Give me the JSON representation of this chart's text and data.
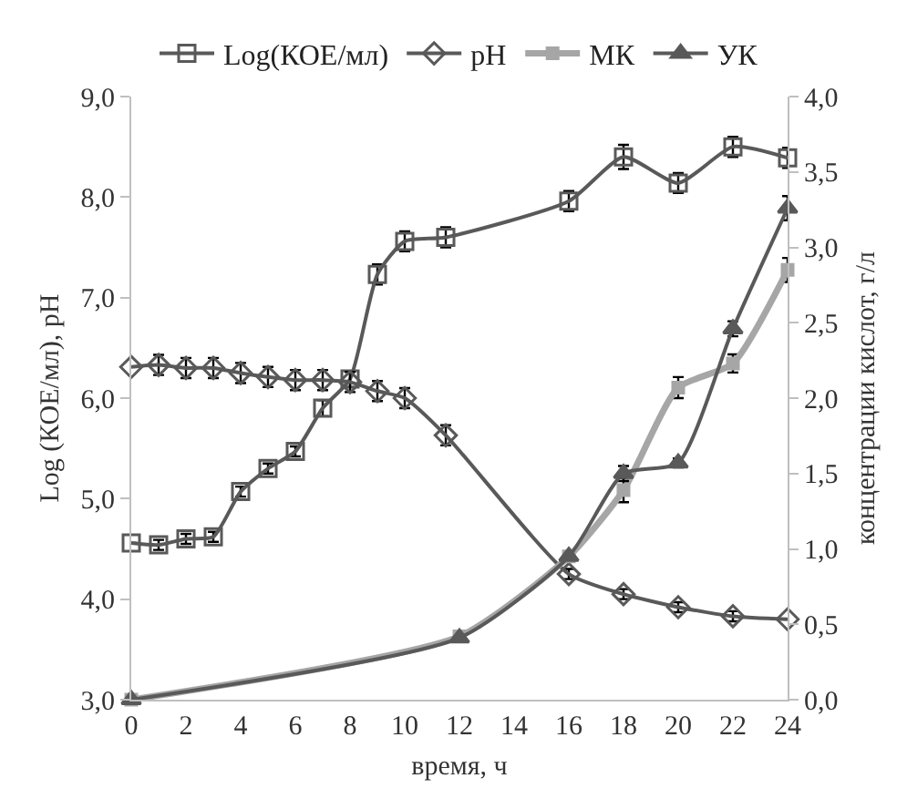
{
  "chart_data": {
    "type": "line",
    "xlabel": "время, ч",
    "ylabel": "Log (КОЕ/мл), pH",
    "y2label": "концентрации кислот, г/л",
    "xlim": [
      0,
      24
    ],
    "xticks": [
      0,
      2,
      4,
      6,
      8,
      10,
      12,
      14,
      16,
      18,
      20,
      22,
      24
    ],
    "ylim": [
      3,
      9
    ],
    "yticks": [
      {
        "value": 3,
        "label": "3,0"
      },
      {
        "value": 4,
        "label": "4,0"
      },
      {
        "value": 5,
        "label": "5,0"
      },
      {
        "value": 6,
        "label": "6,0"
      },
      {
        "value": 7,
        "label": "7,0"
      },
      {
        "value": 8,
        "label": "8,0"
      },
      {
        "value": 9,
        "label": "9,0"
      }
    ],
    "y2lim": [
      0,
      4
    ],
    "y2ticks": [
      {
        "value": 0,
        "label": "0,0"
      },
      {
        "value": 0.5,
        "label": "0,5"
      },
      {
        "value": 1,
        "label": "1,0"
      },
      {
        "value": 1.5,
        "label": "1,5"
      },
      {
        "value": 2,
        "label": "2,0"
      },
      {
        "value": 2.5,
        "label": "2,5"
      },
      {
        "value": 3,
        "label": "3,0"
      },
      {
        "value": 3.5,
        "label": "3,5"
      },
      {
        "value": 4,
        "label": "4,0"
      }
    ],
    "grid": false,
    "legend": "top",
    "line_style": "solid",
    "series": [
      {
        "name": "Log(КОЕ/мл)",
        "color": "#595959",
        "marker": "square",
        "x": [
          0,
          1,
          2,
          3,
          4,
          5,
          6,
          7,
          8,
          9,
          10,
          11.5,
          16,
          18,
          20,
          22,
          24
        ],
        "values": [
          4.56,
          4.54,
          4.6,
          4.62,
          5.07,
          5.3,
          5.47,
          5.9,
          6.19,
          7.23,
          7.56,
          7.6,
          7.96,
          8.4,
          8.14,
          8.5,
          8.39
        ],
        "errors": [
          null,
          0.05,
          0.05,
          0.05,
          0.05,
          0.05,
          0.05,
          0.08,
          0.08,
          0.1,
          0.1,
          0.1,
          0.1,
          0.12,
          0.1,
          0.1,
          0.1
        ]
      },
      {
        "name": "pH",
        "color": "#595959",
        "marker": "diamond",
        "x": [
          0,
          1,
          2,
          3,
          4,
          5,
          6,
          7,
          8,
          9,
          10,
          11.5,
          16,
          18,
          20,
          22,
          24
        ],
        "values": [
          6.31,
          6.33,
          6.3,
          6.3,
          6.25,
          6.21,
          6.18,
          6.18,
          6.16,
          6.07,
          6.0,
          5.63,
          4.25,
          4.05,
          3.92,
          3.83,
          3.8
        ],
        "errors": [
          null,
          0.1,
          0.1,
          0.1,
          0.1,
          0.1,
          0.1,
          0.1,
          0.1,
          0.1,
          0.1,
          0.1,
          0.05,
          0.05,
          0.05,
          0.05,
          null
        ]
      },
      {
        "name": "МК",
        "color": "#a6a6a6",
        "marker": "square",
        "axis": "y2",
        "x": [
          0,
          12,
          16,
          18,
          20,
          22,
          24
        ],
        "values": [
          0,
          0.42,
          0.95,
          1.39,
          2.07,
          2.23,
          2.85
        ],
        "errors": [
          null,
          null,
          null,
          0.08,
          0.07,
          0.06,
          0.08
        ]
      },
      {
        "name": "УК",
        "color": "#595959",
        "marker": "triangle",
        "axis": "y2",
        "x": [
          0,
          12,
          16,
          18,
          20,
          22,
          24
        ],
        "values": [
          0,
          0.41,
          0.95,
          1.5,
          1.57,
          2.46,
          3.26
        ],
        "errors": [
          null,
          null,
          null,
          0.05,
          0.03,
          0.05,
          0.08
        ]
      }
    ]
  }
}
